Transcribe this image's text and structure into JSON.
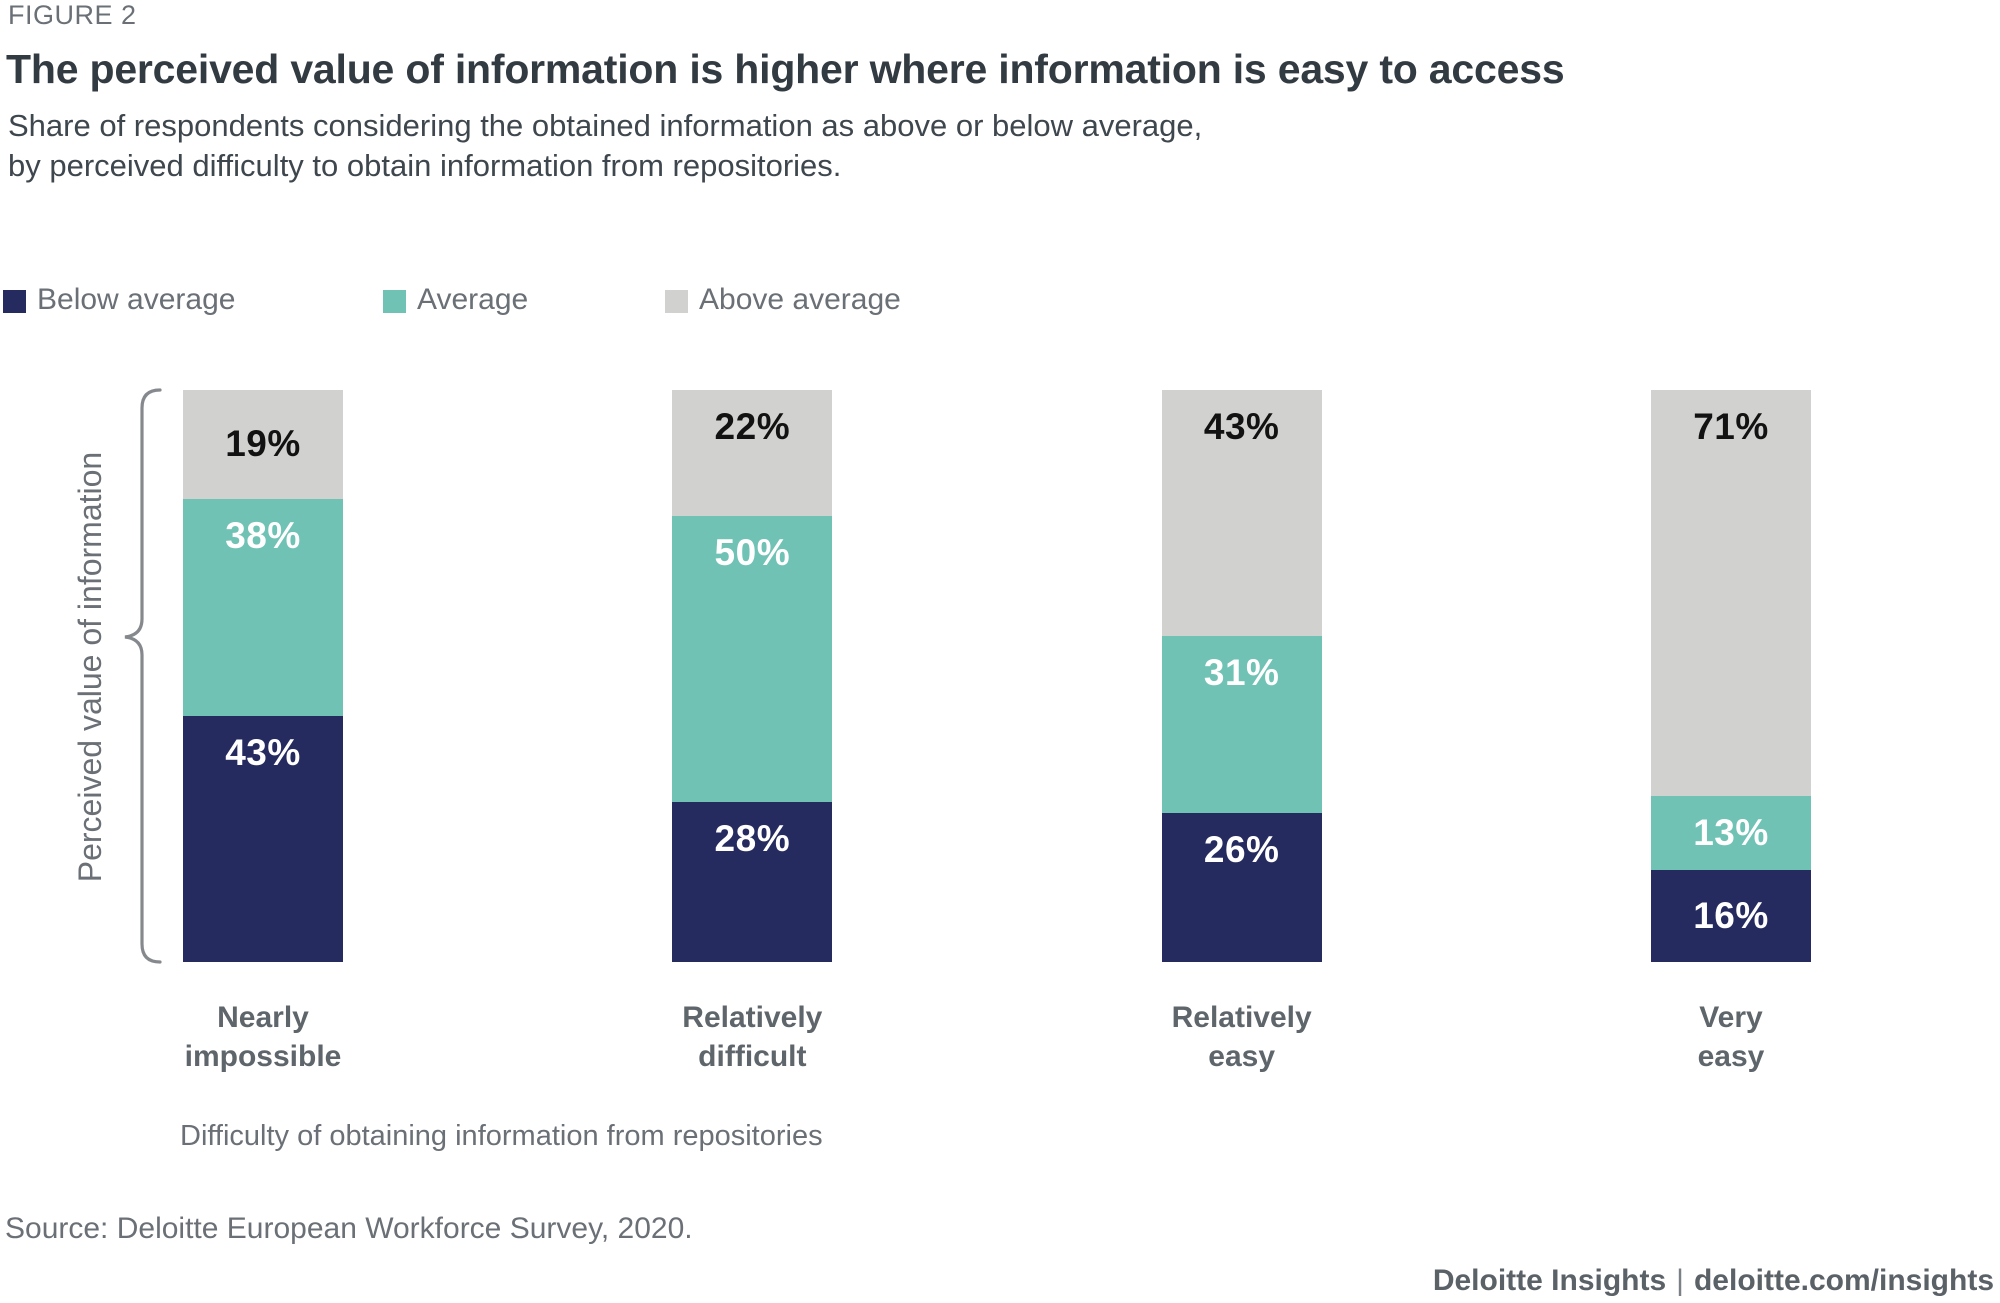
{
  "figure_label": "FIGURE 2",
  "title": "The perceived value of information is higher where information is easy to access",
  "subtitle_lines": [
    "Share of respondents considering the obtained information as above or below average,",
    "by perceived difficulty to obtain information from repositories."
  ],
  "legend": [
    {
      "label": "Below average",
      "color": "#262B5F"
    },
    {
      "label": "Average",
      "color": "#6FC2B4"
    },
    {
      "label": "Above average",
      "color": "#D1D1CF"
    }
  ],
  "chart_data": {
    "type": "bar",
    "stacked": true,
    "unit": "%",
    "categories": [
      "Nearly impossible",
      "Relatively difficult",
      "Relatively easy",
      "Very easy"
    ],
    "series": [
      {
        "name": "Below average",
        "color": "#262B5F",
        "text_color": "#FFFFFF",
        "values": [
          43,
          28,
          26,
          16
        ]
      },
      {
        "name": "Average",
        "color": "#6FC2B4",
        "text_color": "#FFFFFF",
        "values": [
          38,
          50,
          31,
          13
        ]
      },
      {
        "name": "Above average",
        "color": "#D1D1CF",
        "text_color": "#121212",
        "values": [
          19,
          22,
          43,
          71
        ]
      }
    ],
    "ylabel": "Perceived value of information",
    "xlabel": "Difficulty of obtaining information from repositories",
    "ylim": [
      0,
      100
    ],
    "grid": false,
    "legend_position": "top"
  },
  "source": "Source: Deloitte European Workforce Survey, 2020.",
  "footer": {
    "brand": "Deloitte Insights",
    "separator": "|",
    "url": "deloitte.com/insights"
  }
}
